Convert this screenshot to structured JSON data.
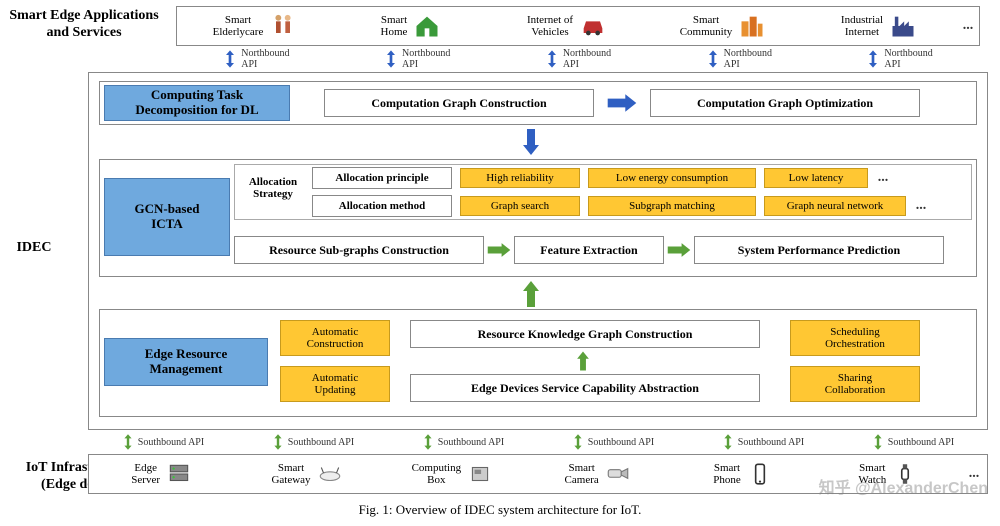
{
  "colors": {
    "blue_label_bg": "#6fa9de",
    "blue_label_border": "#4a7bb0",
    "yellow_bg": "#ffc733",
    "yellow_border": "#c79a1d",
    "border_gray": "#888888",
    "arrow_blue": "#2f5fc2",
    "arrow_green": "#5aa03a",
    "text": "#000000"
  },
  "left_labels": {
    "top": "Smart Edge Applications\nand Services",
    "mid": "IDEC",
    "bottom": "IoT Infrastructures\n(Edge devices)"
  },
  "top_row": {
    "items": [
      {
        "label": "Smart\nElderlycare",
        "icon": "elderly"
      },
      {
        "label": "Smart\nHome",
        "icon": "house"
      },
      {
        "label": "Internet of\nVehicles",
        "icon": "car"
      },
      {
        "label": "Smart\nCommunity",
        "icon": "buildings"
      },
      {
        "label": "Industrial\nInternet",
        "icon": "factory"
      }
    ],
    "ellipsis": "..."
  },
  "north_api": {
    "label": "Northbound\nAPI",
    "count": 5,
    "arrow_color": "#2f5fc2"
  },
  "idec": {
    "layer1": {
      "title": "Computing Task\nDecomposition for DL",
      "boxes": [
        "Computation Graph Construction",
        "Computation Graph Optimization"
      ]
    },
    "layer2": {
      "title": "GCN-based\nICTA",
      "strategy_label": "Allocation\nStrategy",
      "rows": [
        {
          "head": "Allocation principle",
          "items": [
            "High reliability",
            "Low energy consumption",
            "Low latency"
          ],
          "ellipsis": "..."
        },
        {
          "head": "Allocation  method",
          "items": [
            "Graph search",
            "Subgraph matching",
            "Graph neural network"
          ],
          "ellipsis": "..."
        }
      ],
      "pipeline": [
        "Resource Sub-graphs Construction",
        "Feature Extraction",
        "System Performance Prediction"
      ]
    },
    "layer3": {
      "title": "Edge Resource\nManagement",
      "left_items": [
        "Automatic\nConstruction",
        "Automatic\nUpdating"
      ],
      "center_items": [
        "Resource Knowledge Graph Construction",
        "Edge Devices Service Capability Abstraction"
      ],
      "right_items": [
        "Scheduling\nOrchestration",
        "Sharing\nCollaboration"
      ]
    }
  },
  "south_api": {
    "label": "Southbound API",
    "count": 6,
    "arrow_color": "#5aa03a"
  },
  "bottom_row": {
    "items": [
      {
        "label": "Edge\nServer",
        "icon": "server"
      },
      {
        "label": "Smart\nGateway",
        "icon": "gateway"
      },
      {
        "label": "Computing\nBox",
        "icon": "box"
      },
      {
        "label": "Smart\nCamera",
        "icon": "camera"
      },
      {
        "label": "Smart\nPhone",
        "icon": "phone"
      },
      {
        "label": "Smart\nWatch",
        "icon": "watch"
      }
    ],
    "ellipsis": "..."
  },
  "caption": "Fig. 1:   Overview of IDEC system architecture for IoT.",
  "watermark": "知乎 @AlexanderChen"
}
